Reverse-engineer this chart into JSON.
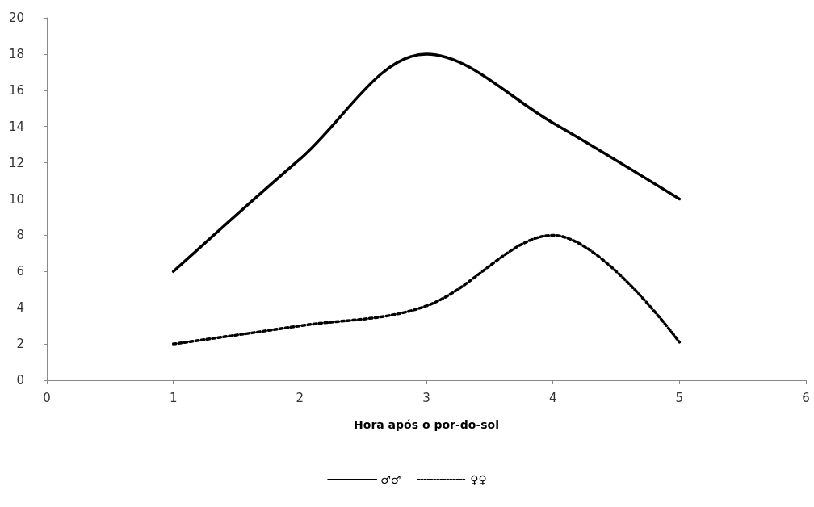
{
  "chart_data": {
    "type": "line",
    "xlabel": "Hora após o por-do-sol",
    "x": [
      1,
      2,
      3,
      4,
      5
    ],
    "series": [
      {
        "name": "♂♂",
        "color": "#000000",
        "line_style": "solid",
        "values": [
          6,
          12.2,
          18,
          14.2,
          10
        ]
      },
      {
        "name": "♀♀",
        "color": "#000000",
        "line_style": "dotted",
        "values": [
          2,
          3,
          4.1,
          8,
          2.1
        ]
      }
    ],
    "xlim": [
      0,
      6
    ],
    "xticks": [
      0,
      1,
      2,
      3,
      4,
      5,
      6
    ],
    "ylim": [
      0,
      20
    ],
    "yticks": [
      0,
      2,
      4,
      6,
      8,
      10,
      12,
      14,
      16,
      18,
      20
    ],
    "grid": false,
    "legend": "bottom",
    "marker": "none"
  }
}
